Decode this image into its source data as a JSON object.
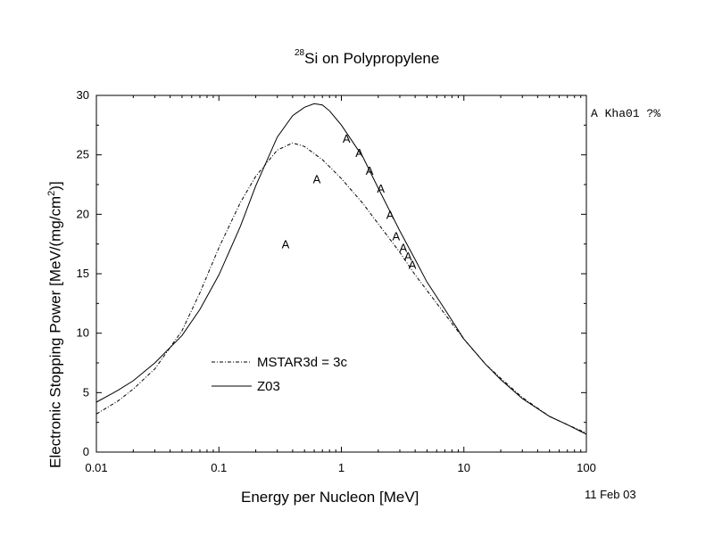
{
  "chart_data": {
    "type": "line",
    "title": {
      "sup": "28",
      "main": "Si on Polypropylene"
    },
    "xlabel": "Energy per Nucleon [MeV]",
    "ylabel": {
      "main": "Electronic Stopping Power [MeV/(mg/cm",
      "sup": "2",
      "end": ")]"
    },
    "x_scale": "log",
    "xlim": [
      0.01,
      100
    ],
    "ylim": [
      0,
      30
    ],
    "x_ticks": [
      0.01,
      0.1,
      1,
      10,
      100
    ],
    "x_tick_labels": [
      "0.01",
      "0.1",
      "1",
      "10",
      "100"
    ],
    "y_ticks": [
      0,
      5,
      10,
      15,
      20,
      25,
      30
    ],
    "y_tick_labels": [
      "0",
      "5",
      "10",
      "15",
      "20",
      "25",
      "30"
    ],
    "grid": false,
    "legend_position": "bottom-left",
    "series": [
      {
        "name": "MSTAR3d = 3c",
        "style": "dash-dot",
        "x": [
          0.01,
          0.015,
          0.02,
          0.03,
          0.05,
          0.07,
          0.1,
          0.15,
          0.2,
          0.3,
          0.4,
          0.5,
          0.7,
          1,
          1.5,
          2,
          3,
          4,
          5,
          7,
          10,
          15,
          20,
          30,
          50,
          70,
          100
        ],
        "y": [
          3.2,
          4.3,
          5.3,
          7.0,
          10.2,
          13.4,
          17.2,
          21.0,
          23.2,
          25.4,
          26.0,
          25.7,
          24.6,
          23.0,
          20.9,
          19.2,
          16.8,
          14.9,
          13.6,
          11.6,
          9.5,
          7.4,
          6.2,
          4.6,
          3.0,
          2.3,
          1.6
        ]
      },
      {
        "name": "Z03",
        "style": "solid",
        "x": [
          0.01,
          0.015,
          0.02,
          0.03,
          0.05,
          0.07,
          0.1,
          0.15,
          0.2,
          0.3,
          0.4,
          0.5,
          0.6,
          0.7,
          0.8,
          1,
          1.5,
          2,
          3,
          4,
          5,
          7,
          10,
          15,
          20,
          30,
          50,
          70,
          100
        ],
        "y": [
          4.2,
          5.2,
          6.0,
          7.5,
          9.8,
          12.0,
          14.9,
          19.0,
          22.4,
          26.5,
          28.3,
          29.0,
          29.3,
          29.2,
          28.7,
          27.5,
          24.8,
          22.2,
          18.6,
          16.2,
          14.3,
          12.0,
          9.5,
          7.4,
          6.1,
          4.5,
          3.0,
          2.3,
          1.5
        ]
      }
    ],
    "markers": {
      "symbol": "A",
      "label": "A Kha01 ?%",
      "x": [
        0.35,
        0.63,
        1.1,
        1.4,
        1.7,
        2.1,
        2.5,
        2.8,
        3.2,
        3.5,
        3.8
      ],
      "y": [
        17.5,
        23.0,
        26.4,
        25.2,
        23.7,
        22.2,
        20.0,
        18.2,
        17.2,
        16.5,
        15.8
      ]
    },
    "date": "11 Feb 03"
  }
}
